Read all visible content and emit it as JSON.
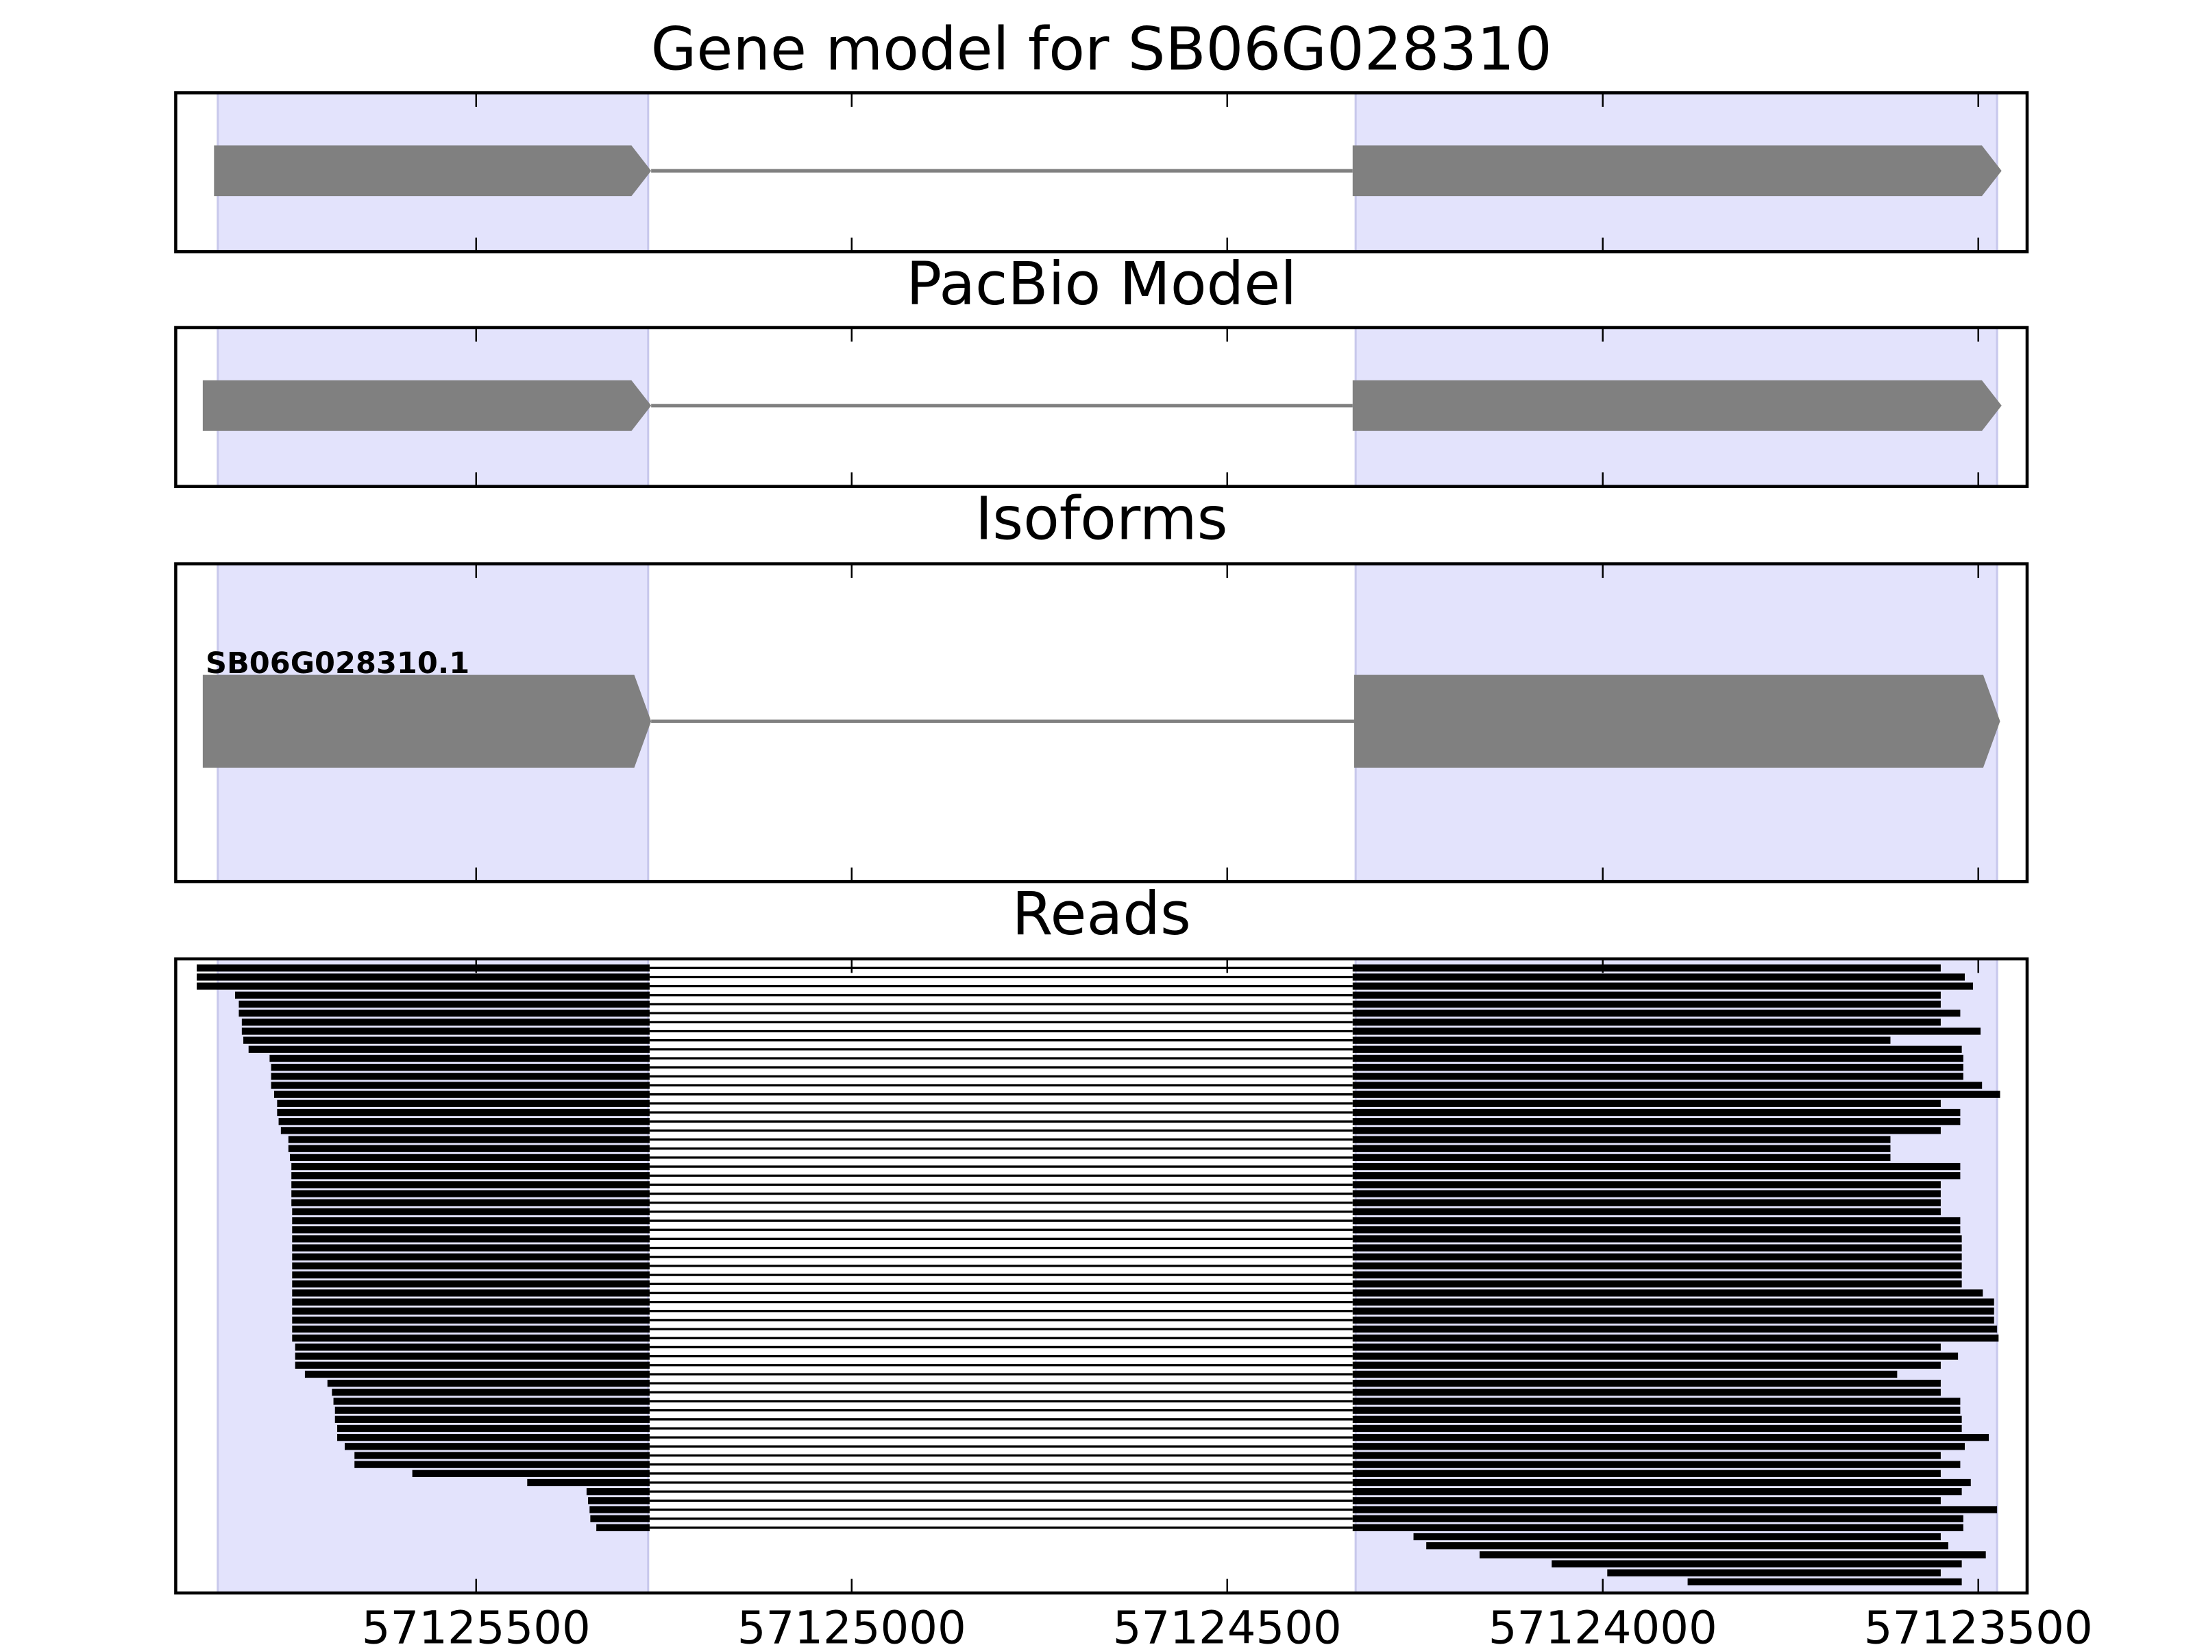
{
  "chart_data": [
    {
      "type": "gene_model",
      "title": "Gene model for SB06G028310",
      "xlim": [
        57125900,
        57123435
      ],
      "xticks": [
        57125500,
        57125000,
        57124500,
        57124000,
        57123500
      ],
      "highlight": [
        [
          57125844,
          57125271
        ],
        [
          57124329,
          57123475
        ]
      ],
      "highlight_color": "#e3e3fc",
      "color": "#808080",
      "exons": [
        [
          57125849,
          57125267
        ],
        [
          57124333,
          57123469
        ]
      ]
    },
    {
      "type": "gene_model",
      "title": "PacBio Model",
      "xlim": [
        57125900,
        57123435
      ],
      "xticks": [
        57125500,
        57125000,
        57124500,
        57124000,
        57123500
      ],
      "highlight": [
        [
          57125844,
          57125271
        ],
        [
          57124329,
          57123475
        ]
      ],
      "highlight_color": "#e3e3fc",
      "color": "#808080",
      "exons": [
        [
          57125864,
          57125267
        ],
        [
          57124333,
          57123469
        ]
      ]
    },
    {
      "type": "isoforms",
      "title": "Isoforms",
      "xlim": [
        57125900,
        57123435
      ],
      "xticks": [
        57125500,
        57125000,
        57124500,
        57124000,
        57123500
      ],
      "highlight": [
        [
          57125844,
          57125271
        ],
        [
          57124329,
          57123475
        ]
      ],
      "highlight_color": "#e3e3fc",
      "color": "#808080",
      "isoforms": [
        {
          "name": "SB06G028310.1",
          "exons": [
            [
              57125864,
              57125267
            ],
            [
              57124331,
              57123471
            ]
          ]
        }
      ]
    },
    {
      "type": "reads",
      "title": "Reads",
      "xlim": [
        57125900,
        57123435
      ],
      "xticks": [
        57125500,
        57125000,
        57124500,
        57124000,
        57123500
      ],
      "highlight": [
        [
          57125844,
          57125271
        ],
        [
          57124329,
          57123475
        ]
      ],
      "highlight_color": "#e3e3fc",
      "color": "#000000",
      "intron": [
        57125269,
        57124333
      ],
      "reads": [
        [
          57125872,
          57123550
        ],
        [
          57125872,
          57123518
        ],
        [
          57125872,
          57123507
        ],
        [
          57125821,
          57123550
        ],
        [
          57125816,
          57123550
        ],
        [
          57125816,
          57123524
        ],
        [
          57125812,
          57123550
        ],
        [
          57125812,
          57123497
        ],
        [
          57125810,
          57123617
        ],
        [
          57125803,
          57123522
        ],
        [
          57125775,
          57123520
        ],
        [
          57125773,
          57123520
        ],
        [
          57125773,
          57123520
        ],
        [
          57125773,
          57123495
        ],
        [
          57125769,
          57123471
        ],
        [
          57125765,
          57123550
        ],
        [
          57125765,
          57123524
        ],
        [
          57125763,
          57123524
        ],
        [
          57125760,
          57123550
        ],
        [
          57125750,
          57123617
        ],
        [
          57125750,
          57123617
        ],
        [
          57125748,
          57123617
        ],
        [
          57125746,
          57123524
        ],
        [
          57125746,
          57123524
        ],
        [
          57125746,
          57123550
        ],
        [
          57125746,
          57123550
        ],
        [
          57125746,
          57123550
        ],
        [
          57125745,
          57123550
        ],
        [
          57125745,
          57123524
        ],
        [
          57125745,
          57123524
        ],
        [
          57125745,
          57123522
        ],
        [
          57125745,
          57123522
        ],
        [
          57125745,
          57123522
        ],
        [
          57125745,
          57123522
        ],
        [
          57125745,
          57123522
        ],
        [
          57125745,
          57123522
        ],
        [
          57125745,
          57123494
        ],
        [
          57125745,
          57123479
        ],
        [
          57125745,
          57123479
        ],
        [
          57125745,
          57123479
        ],
        [
          57125745,
          57123475
        ],
        [
          57125745,
          57123473
        ],
        [
          57125741,
          57123550
        ],
        [
          57125741,
          57123527
        ],
        [
          57125741,
          57123550
        ],
        [
          57125728,
          57123608
        ],
        [
          57125698,
          57123550
        ],
        [
          57125692,
          57123550
        ],
        [
          57125690,
          57123524
        ],
        [
          57125688,
          57123524
        ],
        [
          57125688,
          57123522
        ],
        [
          57125685,
          57123522
        ],
        [
          57125685,
          57123486
        ],
        [
          57125675,
          57123518
        ],
        [
          57125662,
          57123550
        ],
        [
          57125662,
          57123524
        ],
        [
          57125585,
          57123550
        ],
        [
          57125432,
          57123510
        ],
        [
          57125353,
          57123522
        ],
        [
          57125351,
          57123550
        ],
        [
          57125349,
          57123475
        ],
        [
          57125348,
          57123520
        ],
        [
          57125340,
          57123520
        ],
        [
          57124252,
          57123550
        ],
        [
          57124235,
          57123540
        ],
        [
          57124164,
          57123490
        ],
        [
          57124068,
          57123522
        ],
        [
          57123994,
          57123550
        ],
        [
          57123887,
          57123522
        ]
      ]
    }
  ]
}
